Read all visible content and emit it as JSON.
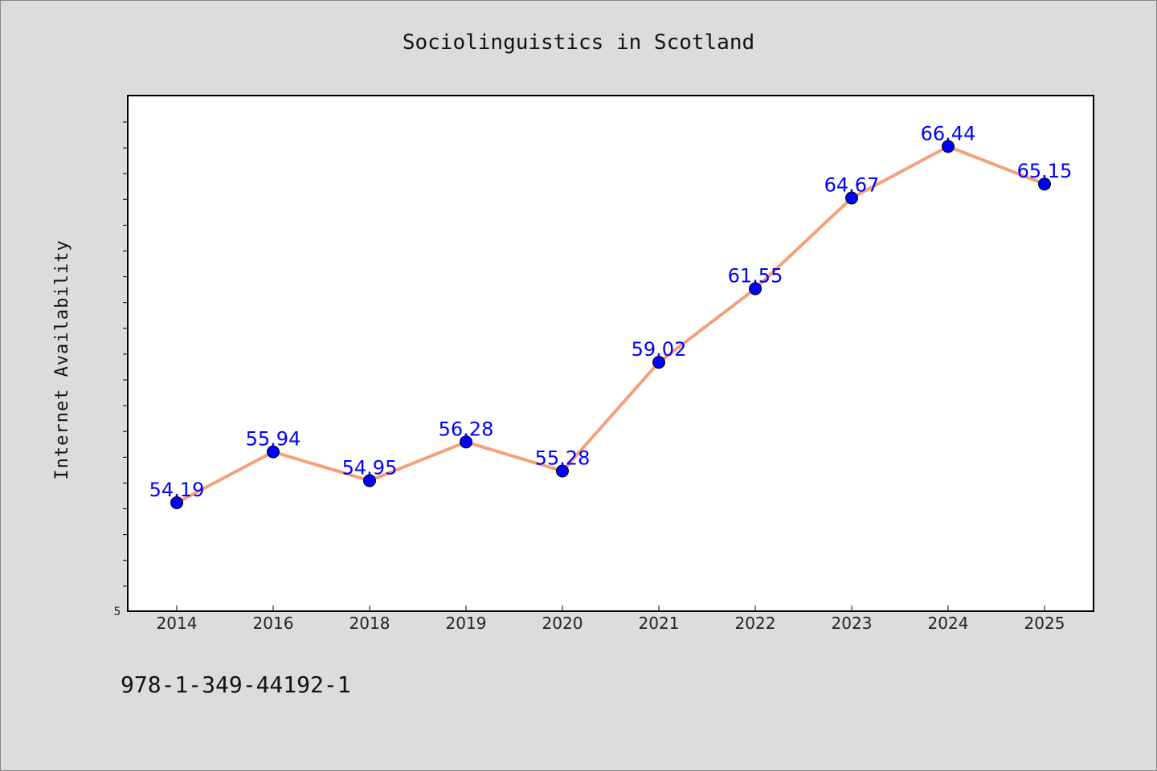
{
  "chart_data": {
    "type": "line",
    "title": "Sociolinguistics in Scotland",
    "xlabel": "",
    "ylabel": "Internet Availability",
    "categories": [
      "2014",
      "2016",
      "2018",
      "2019",
      "2020",
      "2021",
      "2022",
      "2023",
      "2024",
      "2025"
    ],
    "values": [
      54.19,
      55.94,
      54.95,
      56.28,
      55.28,
      59.02,
      61.55,
      64.67,
      66.44,
      65.15
    ],
    "value_labels": [
      "54.19",
      "55.94",
      "54.95",
      "56.28",
      "55.28",
      "59.02",
      "61.55",
      "64.67",
      "66.44",
      "65.15"
    ],
    "y_tick_labels": [
      "5"
    ],
    "line_color": "#f4a07a",
    "marker_color": "#0000ff",
    "label_color": "#0000ff",
    "grid": false,
    "legend": "none"
  },
  "footer": {
    "code": "978-1-349-44192-1"
  }
}
